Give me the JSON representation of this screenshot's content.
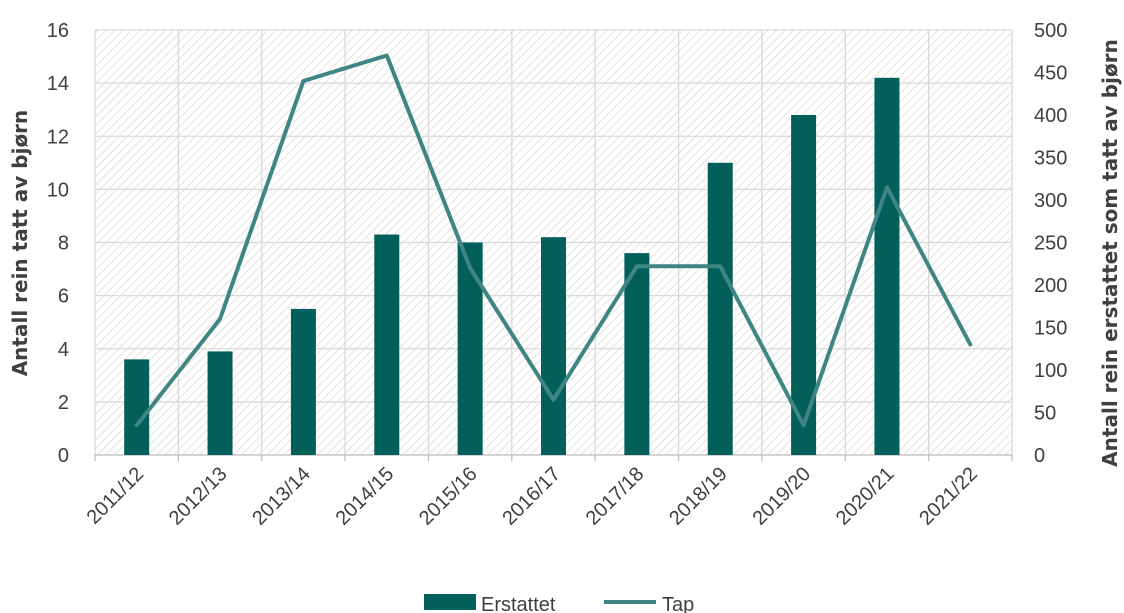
{
  "chart_data": {
    "type": "bar",
    "categories": [
      "2011/12",
      "2012/13",
      "2013/14",
      "2014/15",
      "2015/16",
      "2016/17",
      "2017/18",
      "2018/19",
      "2019/20",
      "2020/21",
      "2021/22"
    ],
    "series": [
      {
        "name": "Erstattet",
        "type": "bar",
        "axis": "left",
        "values": [
          3.6,
          3.9,
          5.5,
          8.3,
          8.0,
          8.2,
          7.6,
          11.0,
          12.8,
          14.2,
          null
        ]
      },
      {
        "name": "Tap",
        "type": "line",
        "axis": "right",
        "values": [
          35,
          160,
          440,
          470,
          220,
          65,
          222,
          222,
          35,
          315,
          130
        ]
      }
    ],
    "ylabel": "Antall rein tatt av bjørn",
    "y2label": "Antall rein erstattet som tatt av bjørn",
    "ylim": [
      0,
      16
    ],
    "y2lim": [
      0,
      500
    ],
    "yticks": [
      "0",
      "2",
      "4",
      "6",
      "8",
      "10",
      "12",
      "14",
      "16"
    ],
    "y2ticks": [
      "0",
      "50",
      "100",
      "150",
      "200",
      "250",
      "300",
      "350",
      "400",
      "450",
      "500"
    ],
    "grid": true,
    "legend": "bottom",
    "colors": {
      "bar": "#035f5a",
      "line": "#3f8583",
      "grid": "#d9d9d9",
      "hatch": "#e2e2e2"
    }
  }
}
